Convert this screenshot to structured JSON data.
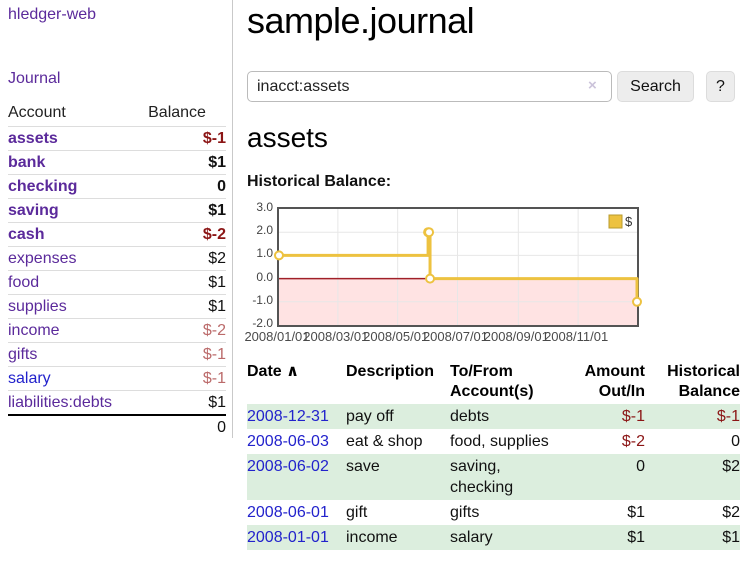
{
  "app": {
    "title": "hledger-web"
  },
  "colors": {
    "link_purple": "#5b2a9b",
    "link_blue": "#2222cc",
    "negative_strong": "#8b1515",
    "negative_muted": "#bb6a6a",
    "row_green": "#dceede",
    "chart_line": "#edc240"
  },
  "sidebar": {
    "journal_link": "Journal",
    "headers": {
      "account": "Account",
      "balance": "Balance"
    },
    "rows": [
      {
        "account": "assets",
        "balance": "$-1"
      },
      {
        "account": "bank",
        "balance": "$1"
      },
      {
        "account": "checking",
        "balance": "0"
      },
      {
        "account": "saving",
        "balance": "$1"
      },
      {
        "account": "cash",
        "balance": "$-2"
      },
      {
        "account": "expenses",
        "balance": "$2"
      },
      {
        "account": "food",
        "balance": "$1"
      },
      {
        "account": "supplies",
        "balance": "$1"
      },
      {
        "account": "income",
        "balance": "$-2"
      },
      {
        "account": "gifts",
        "balance": "$-1"
      },
      {
        "account": "salary",
        "balance": "$-1"
      },
      {
        "account": "liabilities:debts",
        "balance": "$1"
      }
    ],
    "total": "0"
  },
  "main": {
    "page_title": "sample.journal",
    "search": {
      "value": "inacct:assets",
      "clear_icon": "×",
      "button": "Search",
      "help_button": "?"
    },
    "account_heading": "assets",
    "chart_label": "Historical Balance:",
    "register": {
      "sort_icon": "∧",
      "headers": {
        "date": "Date",
        "description": "Description",
        "account_1": "To/From",
        "account_2": "Account(s)",
        "amount_1": "Amount",
        "amount_2": "Out/In",
        "balance_1": "Historical",
        "balance_2": "Balance"
      },
      "rows": [
        {
          "date": "2008-12-31",
          "description": "pay off",
          "account": "debts",
          "amount": "$-1",
          "balance": "$-1"
        },
        {
          "date": "2008-06-03",
          "description": "eat & shop",
          "account": "food, supplies",
          "amount": "$-2",
          "balance": "0"
        },
        {
          "date": "2008-06-02",
          "description": "save",
          "account": "saving,",
          "account2": "checking",
          "amount": "0",
          "balance": "$2"
        },
        {
          "date": "2008-06-01",
          "description": "gift",
          "account": "gifts",
          "amount": "$1",
          "balance": "$2"
        },
        {
          "date": "2008-01-01",
          "description": "income",
          "account": "salary",
          "amount": "$1",
          "balance": "$1"
        }
      ]
    }
  },
  "chart_data": {
    "type": "line",
    "step": true,
    "title": "Historical Balance:",
    "legend": [
      {
        "label": "$",
        "color": "#edc240"
      }
    ],
    "x_range": [
      "2008-01-01",
      "2008-12-31"
    ],
    "ylim": [
      -2,
      3
    ],
    "y_ticks": [
      {
        "value": 3,
        "label": "3.0"
      },
      {
        "value": 2,
        "label": "2.0"
      },
      {
        "value": 1,
        "label": "1.0"
      },
      {
        "value": 0,
        "label": "0.0"
      },
      {
        "value": -1,
        "label": "-1.0"
      },
      {
        "value": -2,
        "label": "-2.0"
      }
    ],
    "x_ticks": [
      {
        "date": "2008-01-01",
        "label": "2008/01/01"
      },
      {
        "date": "2008-03-01",
        "label": "2008/03/01"
      },
      {
        "date": "2008-05-01",
        "label": "2008/05/01"
      },
      {
        "date": "2008-07-01",
        "label": "2008/07/01"
      },
      {
        "date": "2008-09-01",
        "label": "2008/09/01"
      },
      {
        "date": "2008-11-01",
        "label": "2008/11/01"
      }
    ],
    "series": [
      {
        "name": "$",
        "color": "#edc240",
        "points": [
          [
            "2008-01-01",
            1
          ],
          [
            "2008-06-01",
            2
          ],
          [
            "2008-06-02",
            2
          ],
          [
            "2008-06-03",
            0
          ],
          [
            "2008-12-31",
            -1
          ]
        ]
      }
    ],
    "negative_region_fill": "#ffe3e3",
    "zero_line_color": "#a02028",
    "grid_color": "#e7e7e7"
  }
}
